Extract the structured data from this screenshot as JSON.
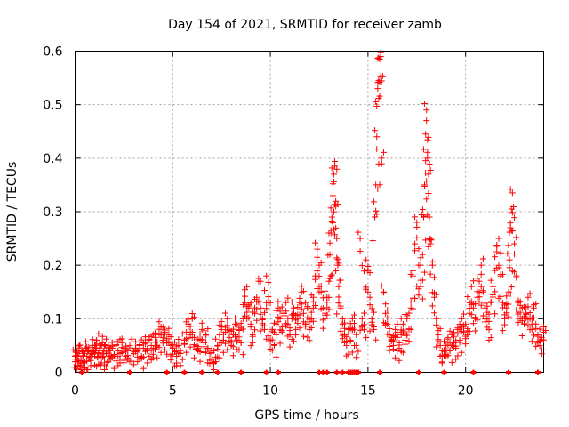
{
  "chart_data": {
    "type": "scatter",
    "title": "Day 154 of 2021, SRMTID for receiver zamb",
    "xlabel": "GPS time / hours",
    "ylabel": "SRMTID / TECUs",
    "xlim": [
      0,
      24
    ],
    "ylim": [
      0,
      0.6
    ],
    "x_ticks": [
      0,
      5,
      10,
      15,
      20
    ],
    "x_tick_labels": [
      "0",
      "5",
      "10",
      "15",
      "20"
    ],
    "y_ticks": [
      0,
      0.1,
      0.2,
      0.3,
      0.4,
      0.5,
      0.6
    ],
    "y_tick_labels": [
      "0",
      "0.1",
      "0.2",
      "0.3",
      "0.4",
      "0.5",
      "0.6"
    ],
    "grid": true,
    "marker": "plus",
    "color": "#ff0000",
    "series": [
      {
        "name": "SRMTID",
        "points": [
          [
            0.0,
            0.03
          ],
          [
            0.05,
            0.02
          ],
          [
            0.1,
            0.04
          ],
          [
            0.15,
            0.03
          ],
          [
            0.2,
            0.035
          ],
          [
            0.3,
            0.025
          ],
          [
            0.35,
            0.04
          ],
          [
            0.4,
            0.03
          ],
          [
            0.5,
            0.02
          ],
          [
            0.55,
            0.045
          ],
          [
            0.6,
            0.03
          ],
          [
            0.7,
            0.04
          ],
          [
            0.75,
            0.025
          ],
          [
            0.8,
            0.035
          ],
          [
            0.9,
            0.05
          ],
          [
            1.0,
            0.03
          ],
          [
            1.05,
            0.04
          ],
          [
            1.1,
            0.06
          ],
          [
            1.2,
            0.035
          ],
          [
            1.25,
            0.045
          ],
          [
            1.3,
            0.03
          ],
          [
            1.4,
            0.055
          ],
          [
            1.45,
            0.04
          ],
          [
            1.5,
            0.025
          ],
          [
            1.6,
            0.035
          ],
          [
            1.7,
            0.05
          ],
          [
            1.75,
            0.03
          ],
          [
            1.8,
            0.04
          ],
          [
            1.9,
            0.045
          ],
          [
            2.0,
            0.03
          ],
          [
            2.1,
            0.05
          ],
          [
            2.2,
            0.04
          ],
          [
            2.3,
            0.035
          ],
          [
            2.4,
            0.055
          ],
          [
            2.5,
            0.045
          ],
          [
            2.6,
            0.03
          ],
          [
            2.7,
            0.04
          ],
          [
            2.8,
            0.05
          ],
          [
            3.0,
            0.035
          ],
          [
            3.1,
            0.045
          ],
          [
            3.2,
            0.04
          ],
          [
            3.3,
            0.05
          ],
          [
            3.4,
            0.03
          ],
          [
            3.5,
            0.045
          ],
          [
            3.6,
            0.055
          ],
          [
            3.7,
            0.04
          ],
          [
            3.8,
            0.06
          ],
          [
            3.9,
            0.05
          ],
          [
            4.0,
            0.045
          ],
          [
            4.1,
            0.065
          ],
          [
            4.2,
            0.05
          ],
          [
            4.3,
            0.07
          ],
          [
            4.4,
            0.085
          ],
          [
            4.5,
            0.06
          ],
          [
            4.6,
            0.075
          ],
          [
            4.7,
            0.055
          ],
          [
            4.8,
            0.07
          ],
          [
            4.9,
            0.05
          ],
          [
            5.0,
            0.045
          ],
          [
            5.1,
            0.04
          ],
          [
            5.2,
            0.03
          ],
          [
            5.3,
            0.05
          ],
          [
            5.4,
            0.035
          ],
          [
            5.6,
            0.06
          ],
          [
            5.7,
            0.075
          ],
          [
            5.8,
            0.09
          ],
          [
            5.9,
            0.07
          ],
          [
            6.0,
            0.1
          ],
          [
            6.1,
            0.065
          ],
          [
            6.2,
            0.05
          ],
          [
            6.3,
            0.04
          ],
          [
            6.4,
            0.06
          ],
          [
            6.5,
            0.08
          ],
          [
            6.6,
            0.055
          ],
          [
            6.7,
            0.07
          ],
          [
            6.8,
            0.045
          ],
          [
            6.9,
            0.035
          ],
          [
            7.0,
            0.025
          ],
          [
            7.1,
            0.04
          ],
          [
            7.2,
            0.02
          ],
          [
            7.3,
            0.05
          ],
          [
            7.4,
            0.07
          ],
          [
            7.5,
            0.085
          ],
          [
            7.6,
            0.06
          ],
          [
            7.7,
            0.075
          ],
          [
            7.8,
            0.1
          ],
          [
            7.9,
            0.065
          ],
          [
            8.0,
            0.05
          ],
          [
            8.1,
            0.07
          ],
          [
            8.2,
            0.09
          ],
          [
            8.3,
            0.06
          ],
          [
            8.4,
            0.08
          ],
          [
            8.5,
            0.055
          ],
          [
            8.6,
            0.1
          ],
          [
            8.7,
            0.13
          ],
          [
            8.8,
            0.16
          ],
          [
            8.9,
            0.12
          ],
          [
            9.0,
            0.09
          ],
          [
            9.1,
            0.07
          ],
          [
            9.2,
            0.11
          ],
          [
            9.3,
            0.14
          ],
          [
            9.4,
            0.17
          ],
          [
            9.5,
            0.12
          ],
          [
            9.6,
            0.1
          ],
          [
            9.7,
            0.08
          ],
          [
            9.8,
            0.18
          ],
          [
            9.9,
            0.13
          ],
          [
            10.0,
            0.06
          ],
          [
            10.1,
            0.08
          ],
          [
            10.2,
            0.05
          ],
          [
            10.3,
            0.09
          ],
          [
            10.4,
            0.12
          ],
          [
            10.5,
            0.1
          ],
          [
            10.6,
            0.075
          ],
          [
            10.7,
            0.11
          ],
          [
            10.8,
            0.13
          ],
          [
            10.9,
            0.09
          ],
          [
            11.0,
            0.07
          ],
          [
            11.1,
            0.1
          ],
          [
            11.2,
            0.12
          ],
          [
            11.3,
            0.08
          ],
          [
            11.4,
            0.1
          ],
          [
            11.5,
            0.13
          ],
          [
            11.6,
            0.15
          ],
          [
            11.7,
            0.11
          ],
          [
            11.8,
            0.09
          ],
          [
            11.9,
            0.12
          ],
          [
            12.0,
            0.08
          ],
          [
            12.1,
            0.1
          ],
          [
            12.2,
            0.14
          ],
          [
            12.3,
            0.18
          ],
          [
            12.4,
            0.23
          ],
          [
            12.5,
            0.2
          ],
          [
            12.6,
            0.15
          ],
          [
            12.7,
            0.12
          ],
          [
            12.8,
            0.1
          ],
          [
            12.9,
            0.14
          ],
          [
            13.0,
            0.17
          ],
          [
            13.05,
            0.22
          ],
          [
            13.1,
            0.26
          ],
          [
            13.15,
            0.29
          ],
          [
            13.2,
            0.33
          ],
          [
            13.25,
            0.37
          ],
          [
            13.3,
            0.385
          ],
          [
            13.35,
            0.31
          ],
          [
            13.4,
            0.25
          ],
          [
            13.45,
            0.2
          ],
          [
            13.5,
            0.16
          ],
          [
            13.6,
            0.12
          ],
          [
            13.7,
            0.09
          ],
          [
            13.8,
            0.07
          ],
          [
            13.9,
            0.05
          ],
          [
            14.0,
            0.08
          ],
          [
            14.1,
            0.06
          ],
          [
            14.2,
            0.1
          ],
          [
            14.3,
            0.08
          ],
          [
            14.4,
            0.05
          ],
          [
            14.6,
            0.25
          ],
          [
            14.7,
            0.1
          ],
          [
            14.8,
            0.08
          ],
          [
            14.9,
            0.21
          ],
          [
            15.0,
            0.19
          ],
          [
            15.1,
            0.14
          ],
          [
            15.2,
            0.1
          ],
          [
            15.3,
            0.08
          ],
          [
            15.35,
            0.29
          ],
          [
            15.4,
            0.35
          ],
          [
            15.45,
            0.44
          ],
          [
            15.5,
            0.53
          ],
          [
            15.55,
            0.545
          ],
          [
            15.6,
            0.585
          ],
          [
            15.65,
            0.59
          ],
          [
            15.7,
            0.4
          ],
          [
            15.8,
            0.15
          ],
          [
            15.9,
            0.11
          ],
          [
            16.0,
            0.09
          ],
          [
            16.1,
            0.07
          ],
          [
            16.2,
            0.06
          ],
          [
            16.3,
            0.05
          ],
          [
            16.4,
            0.08
          ],
          [
            16.5,
            0.065
          ],
          [
            16.6,
            0.045
          ],
          [
            16.7,
            0.07
          ],
          [
            16.8,
            0.09
          ],
          [
            16.9,
            0.06
          ],
          [
            17.0,
            0.1
          ],
          [
            17.1,
            0.08
          ],
          [
            17.2,
            0.12
          ],
          [
            17.3,
            0.18
          ],
          [
            17.4,
            0.24
          ],
          [
            17.5,
            0.28
          ],
          [
            17.6,
            0.2
          ],
          [
            17.7,
            0.16
          ],
          [
            17.8,
            0.22
          ],
          [
            17.85,
            0.29
          ],
          [
            17.9,
            0.35
          ],
          [
            17.95,
            0.445
          ],
          [
            18.0,
            0.49
          ],
          [
            18.05,
            0.4
          ],
          [
            18.1,
            0.37
          ],
          [
            18.15,
            0.29
          ],
          [
            18.2,
            0.24
          ],
          [
            18.3,
            0.2
          ],
          [
            18.4,
            0.14
          ],
          [
            18.5,
            0.1
          ],
          [
            18.6,
            0.07
          ],
          [
            18.7,
            0.05
          ],
          [
            18.8,
            0.04
          ],
          [
            18.9,
            0.03
          ],
          [
            19.0,
            0.05
          ],
          [
            19.1,
            0.065
          ],
          [
            19.2,
            0.04
          ],
          [
            19.3,
            0.07
          ],
          [
            19.4,
            0.055
          ],
          [
            19.5,
            0.045
          ],
          [
            19.6,
            0.08
          ],
          [
            19.7,
            0.06
          ],
          [
            19.8,
            0.1
          ],
          [
            19.9,
            0.075
          ],
          [
            20.0,
            0.09
          ],
          [
            20.1,
            0.07
          ],
          [
            20.2,
            0.13
          ],
          [
            20.3,
            0.16
          ],
          [
            20.4,
            0.12
          ],
          [
            20.5,
            0.1
          ],
          [
            20.6,
            0.14
          ],
          [
            20.7,
            0.17
          ],
          [
            20.8,
            0.2
          ],
          [
            20.9,
            0.15
          ],
          [
            21.0,
            0.12
          ],
          [
            21.1,
            0.1
          ],
          [
            21.2,
            0.08
          ],
          [
            21.3,
            0.13
          ],
          [
            21.4,
            0.16
          ],
          [
            21.5,
            0.19
          ],
          [
            21.6,
            0.225
          ],
          [
            21.7,
            0.25
          ],
          [
            21.8,
            0.18
          ],
          [
            21.9,
            0.13
          ],
          [
            22.0,
            0.1
          ],
          [
            22.1,
            0.12
          ],
          [
            22.2,
            0.15
          ],
          [
            22.25,
            0.21
          ],
          [
            22.3,
            0.27
          ],
          [
            22.35,
            0.305
          ],
          [
            22.4,
            0.335
          ],
          [
            22.5,
            0.24
          ],
          [
            22.6,
            0.18
          ],
          [
            22.7,
            0.13
          ],
          [
            22.8,
            0.1
          ],
          [
            22.9,
            0.12
          ],
          [
            23.0,
            0.09
          ],
          [
            23.1,
            0.11
          ],
          [
            23.2,
            0.14
          ],
          [
            23.3,
            0.1
          ],
          [
            23.4,
            0.08
          ],
          [
            23.5,
            0.12
          ],
          [
            23.6,
            0.09
          ],
          [
            23.7,
            0.07
          ],
          [
            23.8,
            0.05
          ],
          [
            23.9,
            0.065
          ],
          [
            24.0,
            0.075
          ]
        ]
      }
    ],
    "zero_points_x": [
      0.35,
      2.8,
      4.7,
      5.6,
      6.5,
      7.3,
      8.5,
      9.8,
      10.4,
      12.5,
      12.7,
      12.9,
      13.4,
      13.7,
      14.0,
      14.1,
      14.2,
      14.3,
      14.4,
      14.5,
      15.6,
      17.6,
      18.9,
      20.4,
      22.2,
      23.7
    ]
  }
}
